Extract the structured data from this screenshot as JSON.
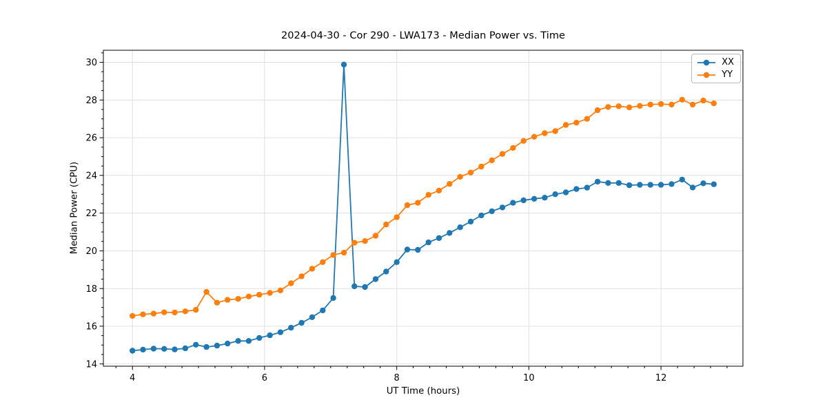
{
  "chart_data": {
    "type": "line",
    "title": "2024-04-30 - Cor 290 - LWA173 - Median Power vs. Time",
    "xlabel": "UT Time (hours)",
    "ylabel": "Median Power (CPU)",
    "xlim": [
      3.56,
      13.24
    ],
    "ylim": [
      13.88,
      30.64
    ],
    "xticks": [
      4,
      6,
      8,
      10,
      12
    ],
    "yticks": [
      14,
      16,
      18,
      20,
      22,
      24,
      26,
      28,
      30
    ],
    "x_minor_step": 0.25,
    "y_minor_step": 0.5,
    "grid": true,
    "legend_position": "upper right",
    "marker": "circle",
    "x": [
      4.0,
      4.16,
      4.32,
      4.48,
      4.64,
      4.8,
      4.96,
      5.12,
      5.28,
      5.44,
      5.6,
      5.76,
      5.92,
      6.08,
      6.24,
      6.4,
      6.56,
      6.72,
      6.88,
      7.04,
      7.2,
      7.36,
      7.52,
      7.68,
      7.84,
      8.0,
      8.16,
      8.32,
      8.48,
      8.64,
      8.8,
      8.96,
      9.12,
      9.28,
      9.44,
      9.6,
      9.76,
      9.92,
      10.08,
      10.24,
      10.4,
      10.56,
      10.72,
      10.88,
      11.04,
      11.2,
      11.36,
      11.52,
      11.68,
      11.84,
      12.0,
      12.16,
      12.32,
      12.48,
      12.64,
      12.8
    ],
    "series": [
      {
        "name": "XX",
        "color": "#1f77b4",
        "values": [
          14.7,
          14.76,
          14.81,
          14.8,
          14.77,
          14.83,
          15.02,
          14.9,
          14.97,
          15.08,
          15.22,
          15.22,
          15.38,
          15.52,
          15.68,
          15.92,
          16.18,
          16.48,
          16.84,
          17.5,
          29.88,
          18.12,
          18.08,
          18.5,
          18.9,
          19.4,
          20.07,
          20.05,
          20.45,
          20.68,
          20.95,
          21.25,
          21.55,
          21.88,
          22.1,
          22.3,
          22.55,
          22.68,
          22.76,
          22.82,
          23.0,
          23.1,
          23.28,
          23.35,
          23.67,
          23.6,
          23.6,
          23.48,
          23.5,
          23.5,
          23.5,
          23.54,
          23.78,
          23.36,
          23.58,
          23.53
        ]
      },
      {
        "name": "YY",
        "color": "#ff7f0e",
        "values": [
          16.55,
          16.63,
          16.67,
          16.74,
          16.73,
          16.79,
          16.87,
          17.82,
          17.25,
          17.4,
          17.45,
          17.58,
          17.67,
          17.77,
          17.9,
          18.28,
          18.65,
          19.05,
          19.4,
          19.78,
          19.9,
          20.43,
          20.52,
          20.8,
          21.4,
          21.78,
          22.42,
          22.55,
          22.97,
          23.2,
          23.55,
          23.93,
          24.15,
          24.47,
          24.8,
          25.14,
          25.46,
          25.83,
          26.05,
          26.24,
          26.35,
          26.68,
          26.8,
          27.0,
          27.46,
          27.63,
          27.67,
          27.61,
          27.69,
          27.76,
          27.79,
          27.76,
          28.02,
          27.76,
          27.97,
          27.82
        ]
      }
    ]
  }
}
